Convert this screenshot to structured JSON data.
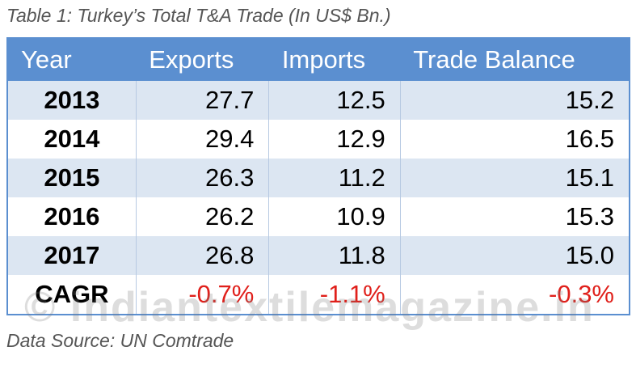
{
  "caption": "Table 1: Turkey’s Total T&A Trade (In US$ Bn.)",
  "table": {
    "header": [
      "Year",
      "Exports",
      "Imports",
      "Trade Balance"
    ],
    "rows": [
      [
        "2013",
        "27.7",
        "12.5",
        "15.2"
      ],
      [
        "2014",
        "29.4",
        "12.9",
        "16.5"
      ],
      [
        "2015",
        "26.3",
        "11.2",
        "15.1"
      ],
      [
        "2016",
        "26.2",
        "10.9",
        "15.3"
      ],
      [
        "2017",
        "26.8",
        "11.8",
        "15.0"
      ],
      [
        "CAGR",
        "-0.7%",
        "-1.1%",
        "-0.3%"
      ]
    ]
  },
  "source": "Data Source: UN Comtrade",
  "watermark": "© indiantextilemagazine.in"
}
